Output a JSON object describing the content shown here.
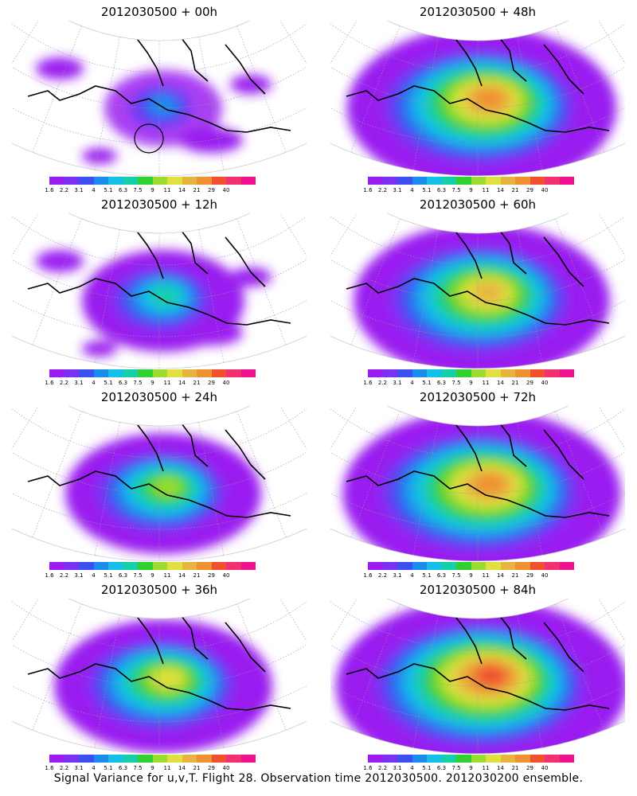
{
  "caption": "Signal Variance for u,v,T. Flight 28. Observation time 2012030500. 2012030200 ensemble.",
  "colorbar": {
    "labels": [
      "1.6",
      "2.2",
      "3.1",
      "4",
      "5.1",
      "6.3",
      "7.5",
      "9",
      "11",
      "14",
      "21",
      "29",
      "40"
    ],
    "colors": [
      "#9a1cf0",
      "#7a30f5",
      "#3a50f0",
      "#1a8cf0",
      "#14c0e8",
      "#14d0a8",
      "#30d030",
      "#9adc30",
      "#e0e040",
      "#e8b440",
      "#f09030",
      "#f05030",
      "#f03070",
      "#f01090"
    ]
  },
  "panels": [
    {
      "title": "2012030500 + 00h",
      "intensity": 0.1,
      "circle": true
    },
    {
      "title": "2012030500 + 48h",
      "intensity": 0.78
    },
    {
      "title": "2012030500 + 12h",
      "intensity": 0.3
    },
    {
      "title": "2012030500 + 60h",
      "intensity": 0.72
    },
    {
      "title": "2012030500 + 24h",
      "intensity": 0.45
    },
    {
      "title": "2012030500 + 72h",
      "intensity": 0.82
    },
    {
      "title": "2012030500 + 36h",
      "intensity": 0.55
    },
    {
      "title": "2012030500 + 84h",
      "intensity": 0.88
    }
  ]
}
